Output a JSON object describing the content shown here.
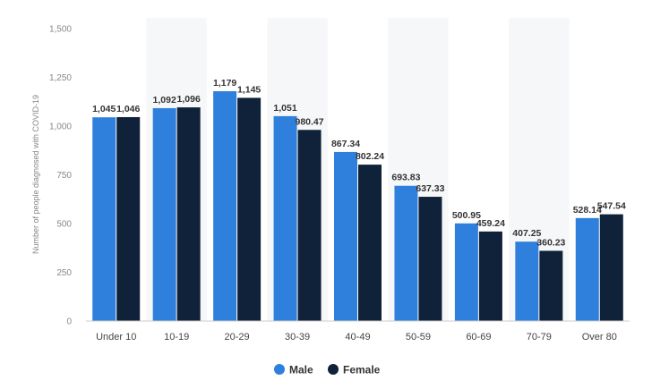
{
  "chart_data": {
    "type": "bar",
    "categories": [
      "Under 10",
      "10-19",
      "20-29",
      "30-39",
      "40-49",
      "50-59",
      "60-69",
      "70-79",
      "Over 80"
    ],
    "series": [
      {
        "name": "Male",
        "color": "#2f80dd",
        "values": [
          1045,
          1092,
          1179,
          1051,
          867.34,
          693.83,
          500.95,
          407.25,
          528.14
        ],
        "labels": [
          "1,045",
          "1,092",
          "1,179",
          "1,051",
          "867.34",
          "693.83",
          "500.95",
          "407.25",
          "528.14"
        ]
      },
      {
        "name": "Female",
        "color": "#0f2239",
        "values": [
          1046,
          1096,
          1145,
          980.47,
          802.24,
          637.33,
          459.24,
          360.23,
          547.54
        ],
        "labels": [
          "1,046",
          "1,096",
          "1,145",
          "980.47",
          "802.24",
          "637.33",
          "459.24",
          "360.23",
          "547.54"
        ]
      }
    ],
    "yticks": [
      0,
      250,
      500,
      750,
      1000,
      1250,
      1500
    ],
    "ytick_labels": [
      "0",
      "250",
      "500",
      "750",
      "1,000",
      "1,250",
      "1,500"
    ],
    "ylabel": "Number of people diagnosed with COVID-19",
    "xlabel": "",
    "ylim": [
      0,
      1500
    ],
    "legend_position": "bottom-center",
    "grid": "alternating-column-bands"
  }
}
